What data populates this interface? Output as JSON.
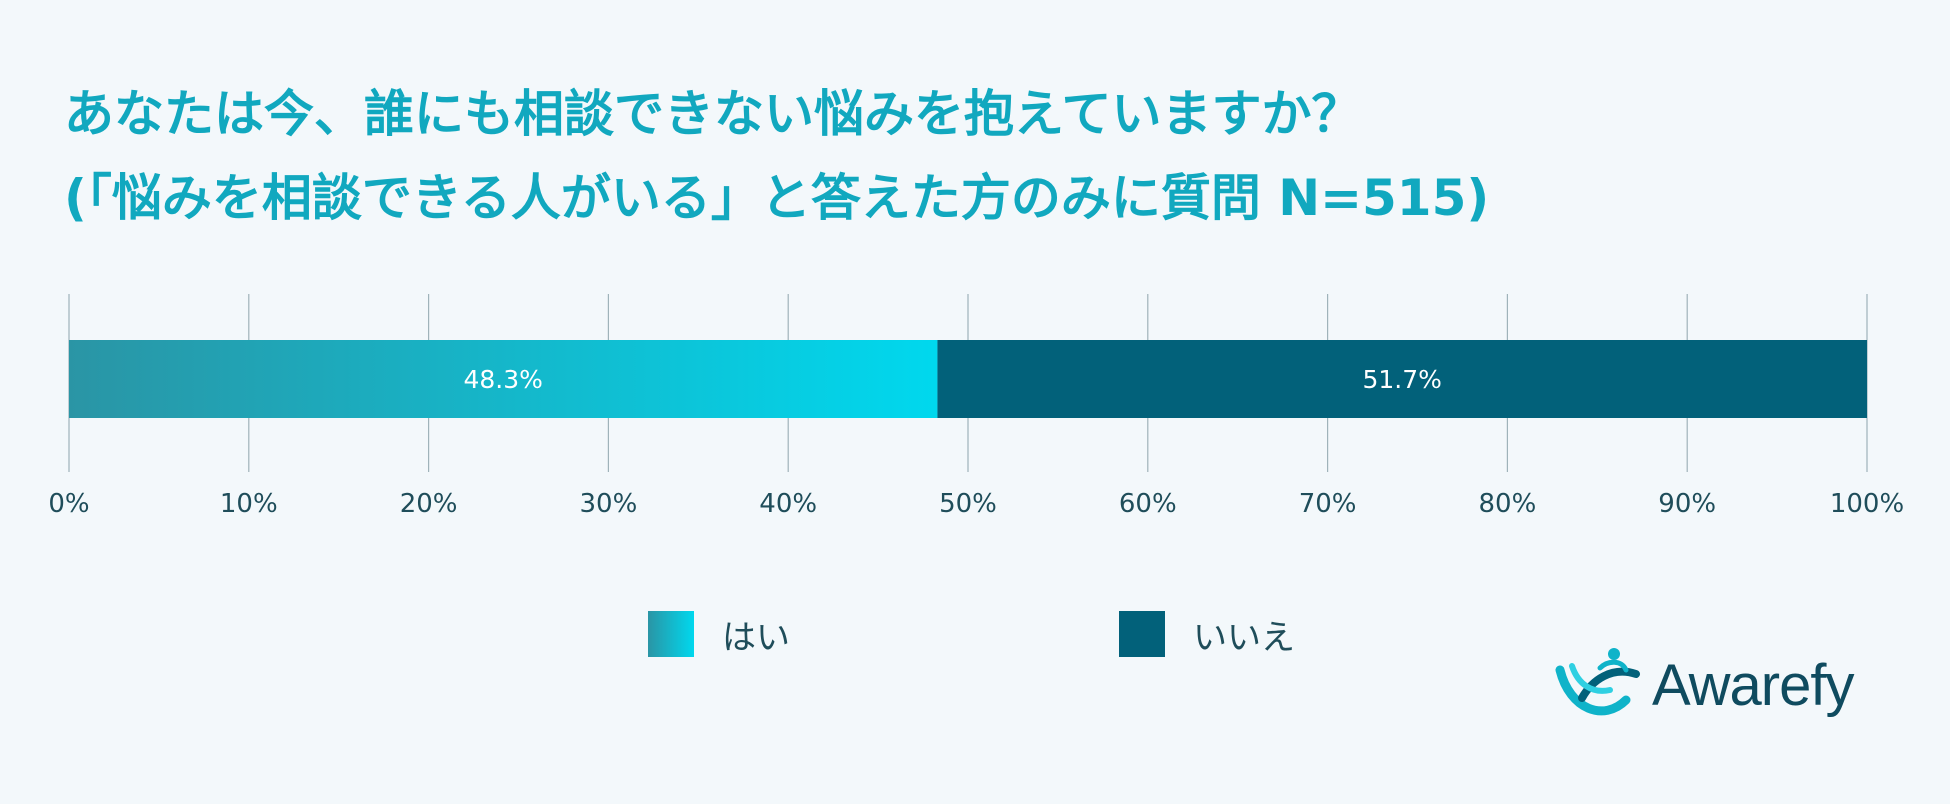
{
  "header": {
    "title_line1": "あなたは今、誰にも相談できない悩みを抱えていますか？",
    "title_line2": "(「悩みを相談できる人がいる」と答えた方のみに質問 N=515)"
  },
  "chart_data": {
    "type": "bar",
    "orientation": "horizontal",
    "stacked": true,
    "categories": [
      ""
    ],
    "series": [
      {
        "name": "はい",
        "values": [
          48.3
        ],
        "label": "48.3%",
        "color": "#0fc3d9"
      },
      {
        "name": "いいえ",
        "values": [
          51.7
        ],
        "label": "51.7%",
        "color": "#02617a"
      }
    ],
    "xlim": [
      0,
      100
    ],
    "x_ticks": [
      "0%",
      "10%",
      "20%",
      "30%",
      "40%",
      "50%",
      "60%",
      "70%",
      "80%",
      "90%",
      "100%"
    ],
    "grid": true,
    "legend_position": "bottom"
  },
  "colors": {
    "title": "#11a8bf",
    "yes_gradient_start": "#2a95a5",
    "yes_gradient_end": "#00d8ee",
    "no": "#02617a",
    "tick_text": "#1f4d5a",
    "grid": "#9fb3ba"
  },
  "legend": {
    "items": [
      {
        "label": "はい"
      },
      {
        "label": "いいえ"
      }
    ]
  },
  "logo": {
    "text": "Awarefy",
    "icon": "awarefy-logo-icon"
  }
}
